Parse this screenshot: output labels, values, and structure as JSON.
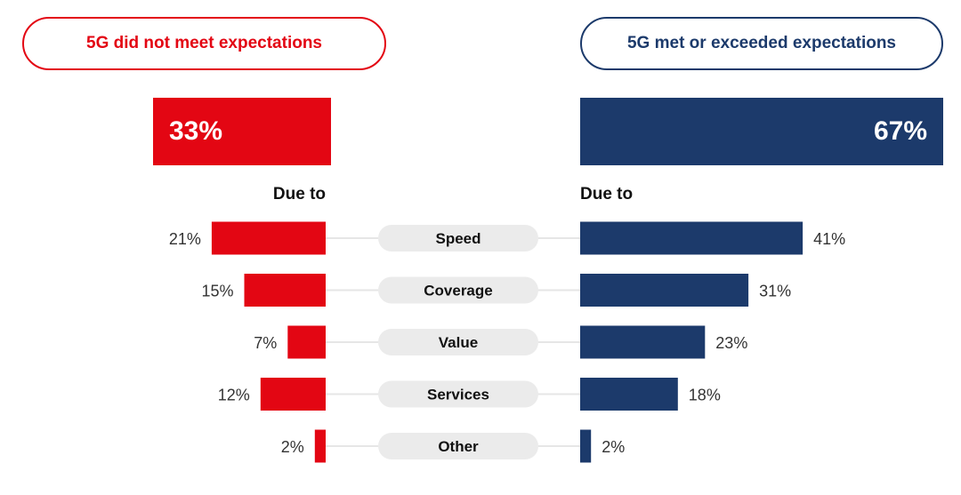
{
  "header": {
    "left_label": "5G did not meet expectations",
    "right_label": "5G met or exceeded expectations"
  },
  "summary": {
    "left_value": "33%",
    "right_value": "67%",
    "left_color": "#e30613",
    "right_color": "#1c3a6b"
  },
  "due_to": {
    "left": "Due to",
    "right": "Due to"
  },
  "chart_data": {
    "type": "bar",
    "orientation": "horizontal-diverging",
    "categories": [
      "Speed",
      "Coverage",
      "Value",
      "Services",
      "Other"
    ],
    "series": [
      {
        "name": "5G did not meet expectations",
        "values": [
          21,
          15,
          7,
          12,
          2
        ],
        "labels": [
          "21%",
          "15%",
          "7%",
          "12%",
          "2%"
        ],
        "color": "#e30613"
      },
      {
        "name": "5G met or exceeded expectations",
        "values": [
          41,
          31,
          23,
          18,
          2
        ],
        "labels": [
          "41%",
          "31%",
          "23%",
          "18%",
          "2%"
        ],
        "color": "#1c3a6b"
      }
    ],
    "unit": "%"
  }
}
